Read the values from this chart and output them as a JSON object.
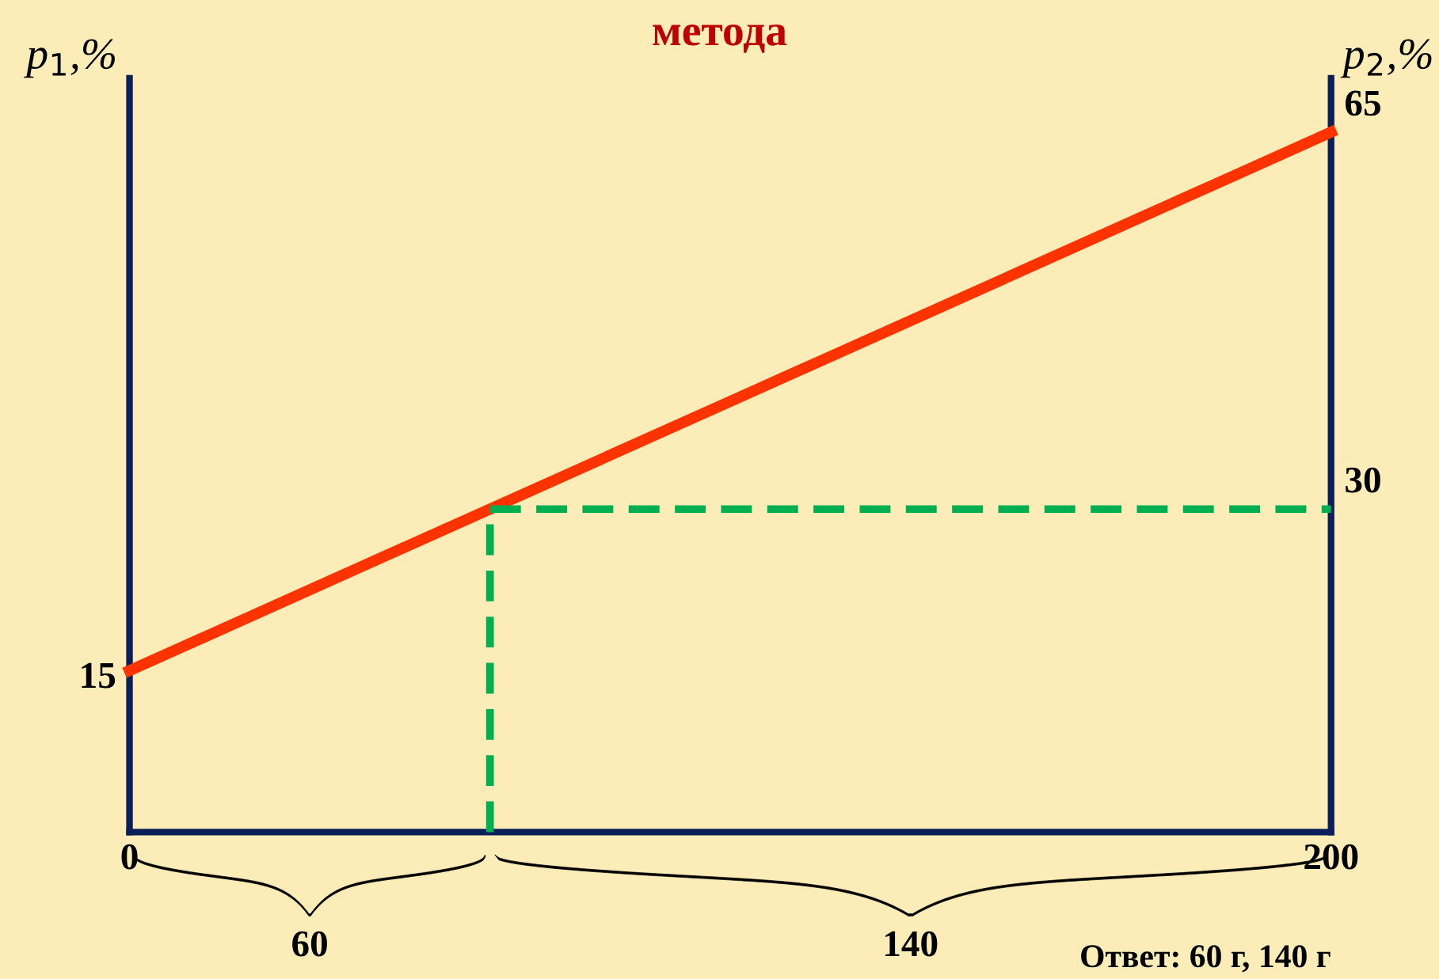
{
  "chart_data": {
    "type": "line",
    "title": "метода",
    "ylabel": "p$_{1}$,%",
    "y2label": "p$_{2}$,%",
    "series": [
      {
        "color": "#ff3300",
        "x": [
          0,
          200
        ],
        "values": [
          15,
          65
        ],
        "value_labels": [
          "15",
          "65"
        ],
        "line_style": "solid"
      },
      {
        "color": "#00b050",
        "x": [
          60,
          60,
          200
        ],
        "values": [
          0,
          30,
          30
        ],
        "value_labels": [
          null,
          null,
          "30"
        ],
        "line_style": "dashed"
      }
    ],
    "xlim": [
      0,
      200
    ],
    "xticks": [
      0,
      200
    ],
    "ylim": [
      0,
      70
    ],
    "annotations": [
      "60",
      "140",
      "Ответ: 60 г, 140 г"
    ]
  }
}
